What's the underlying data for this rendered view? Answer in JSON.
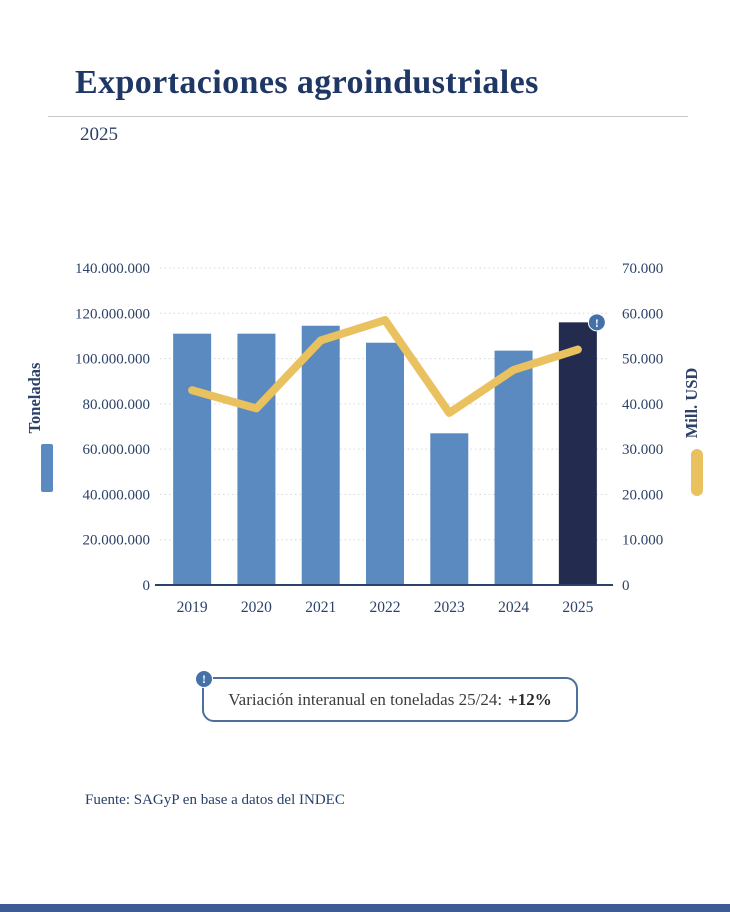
{
  "header": {
    "title": "Exportaciones agroindustriales",
    "subtitle": "2025"
  },
  "chart_data": {
    "type": "bar",
    "subtype": "combo-bar-line",
    "categories": [
      "2019",
      "2020",
      "2021",
      "2022",
      "2023",
      "2024",
      "2025"
    ],
    "series": [
      {
        "name": "Toneladas",
        "type": "bar",
        "axis": "left",
        "values": [
          111000000,
          111000000,
          114500000,
          107000000,
          67000000,
          103500000,
          116000000
        ]
      },
      {
        "name": "Mill. USD",
        "type": "line",
        "axis": "right",
        "values": [
          43000,
          39000,
          54000,
          58500,
          38000,
          47500,
          52000
        ]
      }
    ],
    "left_axis": {
      "label": "Toneladas",
      "min": 0,
      "max": 140000000,
      "ticks": [
        "140.000.000",
        "120.000.000",
        "100.000.000",
        "80.000.000",
        "60.000.000",
        "40.000.000",
        "20.000.000",
        "0"
      ]
    },
    "right_axis": {
      "label": "Mill. USD",
      "min": 0,
      "max": 70000,
      "ticks": [
        "70.000",
        "60.000",
        "50.000",
        "40.000",
        "30.000",
        "20.000",
        "10.000",
        "0"
      ]
    },
    "grid": "dotted-horizontal",
    "legend_position": "sides-vertical",
    "highlight_last_bar": true,
    "badge_on_last_bar": "!"
  },
  "annotation": {
    "icon": "exclamation",
    "text": "Variación interanual en toneladas 25/24:",
    "value": "+12%"
  },
  "footer": {
    "source": "Fuente: SAGyP en base a datos del INDEC"
  },
  "colors": {
    "title": "#1e3765",
    "axis_text": "#2d4269",
    "bar_blue": "#5b8ac0",
    "bar_highlight": "#232c4e",
    "line_yellow": "#e9c15f",
    "grid": "#d8d8d8",
    "badge": "#4472a8",
    "annotation_border": "#4c6f9b",
    "bottom_bar": "#3d5c94"
  }
}
